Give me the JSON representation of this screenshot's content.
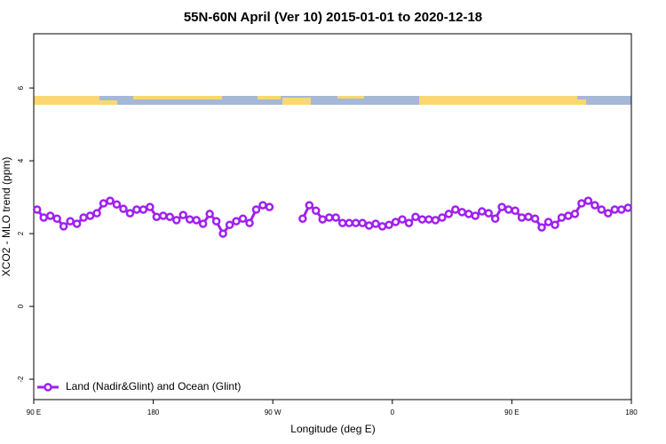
{
  "chart_data": {
    "type": "line",
    "title": "55N-60N April (Ver 10)   2015-01-01 to 2020-12-18",
    "xlabel": "Longitude (deg E)",
    "ylabel": "XCO2 - MLO trend (ppm)",
    "x": [
      92.5,
      97.5,
      102.5,
      107.5,
      112.5,
      117.5,
      122.5,
      127.5,
      132.5,
      137.5,
      142.5,
      147.5,
      152.5,
      157.5,
      162.5,
      167.5,
      172.5,
      177.5,
      182.5,
      187.5,
      192.5,
      197.5,
      202.5,
      207.5,
      212.5,
      217.5,
      222.5,
      227.5,
      232.5,
      237.5,
      242.5,
      247.5,
      252.5,
      257.5,
      262.5,
      267.5,
      272.5,
      277.5,
      282.5,
      287.5,
      292.5,
      297.5,
      302.5,
      307.5,
      312.5,
      317.5,
      322.5,
      327.5,
      332.5,
      337.5,
      342.5,
      347.5,
      352.5,
      357.5,
      362.5,
      367.5,
      372.5,
      377.5,
      382.5,
      387.5,
      392.5,
      397.5,
      402.5,
      407.5,
      412.5,
      417.5,
      422.5,
      427.5,
      432.5,
      437.5,
      442.5,
      447.5,
      452.5,
      457.5,
      462.5,
      467.5,
      472.5,
      477.5,
      482.5,
      487.5,
      492.5,
      497.5,
      502.5,
      507.5,
      512.5,
      517.5,
      522.5,
      527.5,
      532.5,
      537.5
    ],
    "series": [
      {
        "name": "Land (Nadir&Glint) and Ocean (Glint)",
        "color": "#a020f0",
        "values": [
          2.66,
          2.44,
          2.49,
          2.41,
          2.2,
          2.34,
          2.27,
          2.44,
          2.49,
          2.56,
          2.83,
          2.9,
          2.8,
          2.68,
          2.56,
          2.66,
          2.66,
          2.73,
          2.46,
          2.49,
          2.46,
          2.37,
          2.51,
          2.39,
          2.37,
          2.27,
          2.54,
          2.34,
          2.0,
          2.24,
          2.34,
          2.41,
          2.29,
          2.66,
          2.78,
          2.73,
          null,
          null,
          null,
          null,
          2.41,
          2.78,
          2.63,
          2.39,
          2.44,
          2.44,
          2.29,
          2.29,
          2.29,
          2.29,
          2.22,
          2.27,
          2.2,
          2.24,
          2.32,
          2.39,
          2.29,
          2.46,
          2.39,
          2.39,
          2.37,
          2.44,
          2.54,
          2.66,
          2.59,
          2.54,
          2.49,
          2.61,
          2.56,
          2.41,
          2.73,
          2.66,
          2.63,
          2.44,
          2.46,
          2.41,
          2.17,
          2.32,
          2.24,
          2.44,
          2.49,
          2.54,
          2.83,
          2.9,
          2.78,
          2.66,
          2.56,
          2.66,
          2.66,
          2.71
        ]
      }
    ],
    "xlim": [
      90,
      540
    ],
    "xticks": [
      {
        "value": 90,
        "label": "90 E"
      },
      180,
      {
        "value": 270,
        "label": "90 W"
      },
      {
        "value": 360,
        "label": "0"
      },
      {
        "value": 450,
        "label": "90 E"
      },
      {
        "value": 540,
        "label": "180"
      }
    ],
    "ylim": [
      -2.56,
      7.49
    ],
    "yticks": [
      -2,
      0,
      2,
      4,
      6
    ],
    "legend": "bottom-left"
  }
}
